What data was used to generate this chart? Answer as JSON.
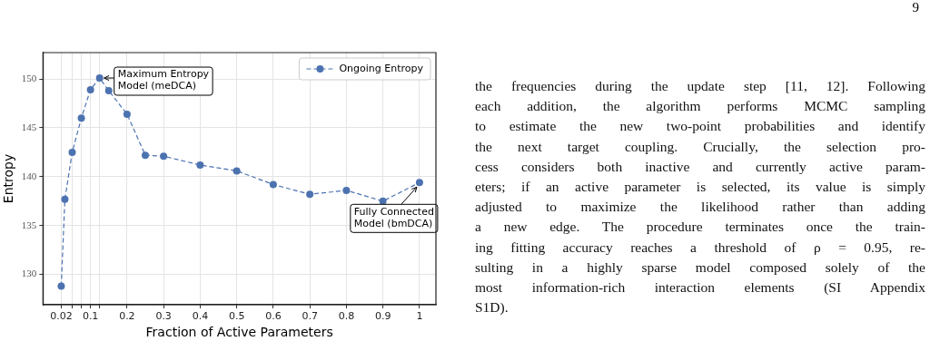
{
  "chart_data": {
    "type": "line",
    "xlabel": "Fraction of Active Parameters",
    "ylabel": "Entropy",
    "x": [
      0.02,
      0.03,
      0.05,
      0.075,
      0.1,
      0.125,
      0.15,
      0.2,
      0.25,
      0.3,
      0.4,
      0.5,
      0.6,
      0.7,
      0.8,
      0.9,
      1
    ],
    "series": [
      {
        "name": "Ongoing Entropy",
        "color": "#4c72b0",
        "values": [
          128.8,
          137.7,
          142.5,
          146.0,
          148.9,
          150.1,
          148.8,
          146.4,
          142.2,
          142.1,
          141.2,
          140.6,
          139.2,
          138.2,
          138.6,
          137.5,
          139.4
        ]
      }
    ],
    "xlim": [
      -0.03,
      1.045
    ],
    "xticks": [
      0.02,
      {
        "value": 0.05,
        "label": null
      },
      {
        "value": 0.075,
        "label": null
      },
      0.1,
      {
        "value": 0.125,
        "label": null
      },
      0.2,
      0.3,
      0.4,
      0.5,
      0.6,
      0.7,
      0.8,
      0.9,
      1
    ],
    "ylim": [
      126.9,
      152.7
    ],
    "yticks": [
      130,
      135,
      140,
      145,
      150
    ],
    "grid": true,
    "legend": "top right",
    "marker": "circle",
    "line_style": "dashed",
    "annotations": [
      {
        "text": "Maximum Entropy\nModel (meDCA)",
        "x": 0.125,
        "y": 150.1
      },
      {
        "text": "Fully Connected\nModel (bmDCA)",
        "x": 1,
        "y": 139.4
      },
      "9",
      "the frequencies during the update step [11, 12]. Following\neach addition, the algorithm performs MCMC sampling\nto estimate the new two-point probabilities and identify\nthe next target coupling. Crucially, the selection pro-\ncess considers both inactive and currently active param-\neters; if an active parameter is selected, its value is simply\nadjusted to maximize the likelihood rather than adding\na new edge. The procedure terminates once the train-\ning fitting accuracy reaches a threshold of ρ = 0.95, re-\nsulting in a highly sparse model composed solely of the\nmost information-rich interaction elements (SI Appendix\nS1D)."
    ]
  }
}
